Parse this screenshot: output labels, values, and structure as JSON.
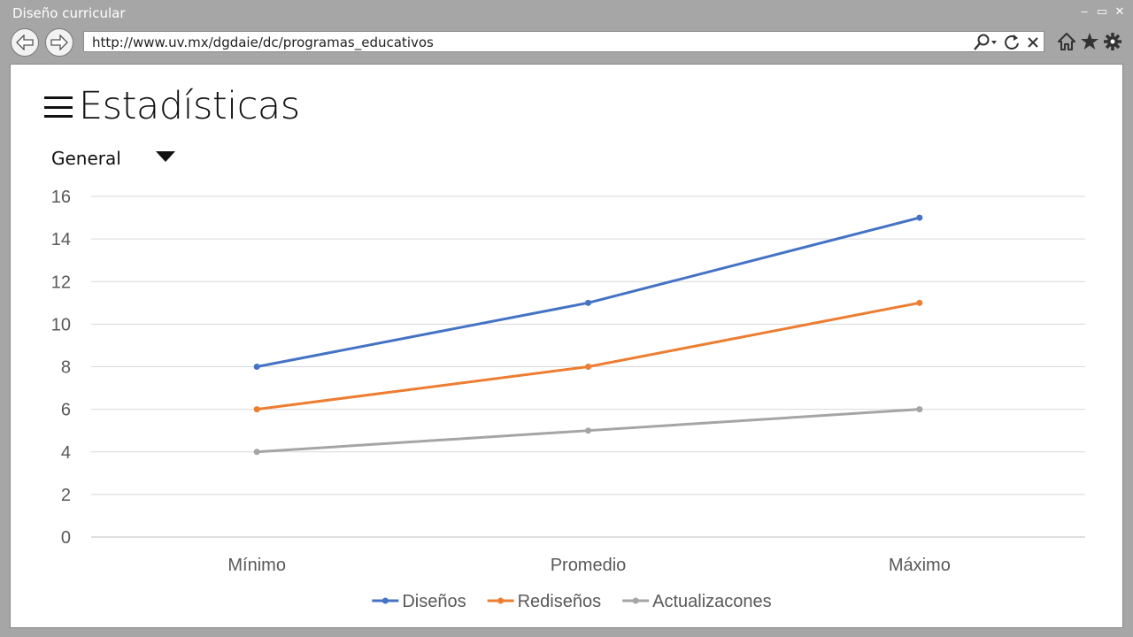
{
  "window": {
    "title": "Diseño curricular",
    "controls": [
      "–",
      "▭",
      "✕"
    ]
  },
  "nav": {
    "url": "http://www.uv.mx/dgdaie/dc/programas_educativos"
  },
  "page": {
    "title": "Estadísticas",
    "dropdown": {
      "selected": "General"
    }
  },
  "chart_data": {
    "type": "line",
    "categories": [
      "Mínimo",
      "Promedio",
      "Máximo"
    ],
    "series": [
      {
        "name": "Diseños",
        "values": [
          8,
          11,
          15
        ],
        "color": "#4472c4"
      },
      {
        "name": "Rediseños",
        "values": [
          6,
          8,
          11
        ],
        "color": "#ed7d31"
      },
      {
        "name": "Actualizacones",
        "values": [
          4,
          5,
          6
        ],
        "color": "#a5a5a5"
      }
    ],
    "ylim": [
      0,
      16
    ],
    "yticks": [
      0,
      2,
      4,
      6,
      8,
      10,
      12,
      14,
      16
    ],
    "grid": true,
    "legend_position": "bottom"
  }
}
